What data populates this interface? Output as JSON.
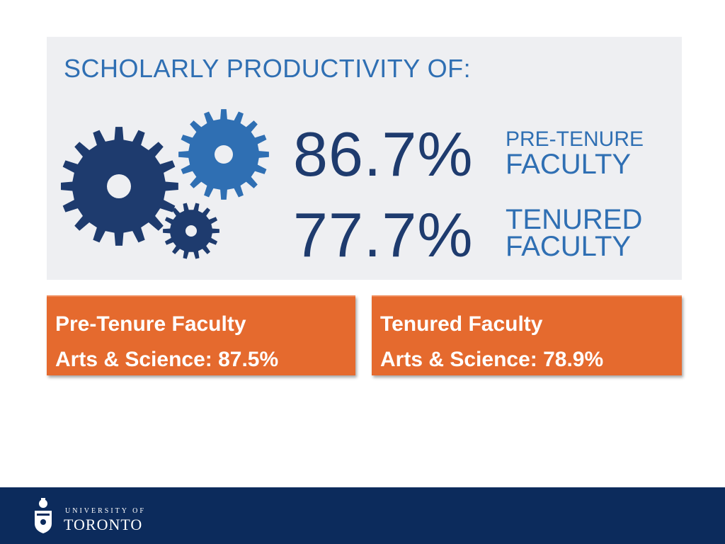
{
  "headline": "SCHOLARLY PRODUCTIVITY OF:",
  "stats": [
    {
      "percent": "86.7%",
      "label_line1": "PRE-TENURE",
      "label_line2": "FACULTY"
    },
    {
      "percent": "77.7%",
      "label_line1": "TENURED",
      "label_line2": "FACULTY"
    }
  ],
  "cards": [
    {
      "title": "Pre-Tenure Faculty",
      "detail": "Arts & Science: 87.5%"
    },
    {
      "title": "Tenured Faculty",
      "detail": "Arts & Science: 78.9%"
    }
  ],
  "footer": {
    "logo_small": "UNIVERSITY OF",
    "logo_big": "TORONTO"
  },
  "colors": {
    "dark_blue": "#1e3b6e",
    "mid_blue": "#2f6fb3",
    "orange": "#e56a2e",
    "navy": "#0c2b5c"
  },
  "icons": [
    "gear-icon",
    "university-crest-icon"
  ]
}
